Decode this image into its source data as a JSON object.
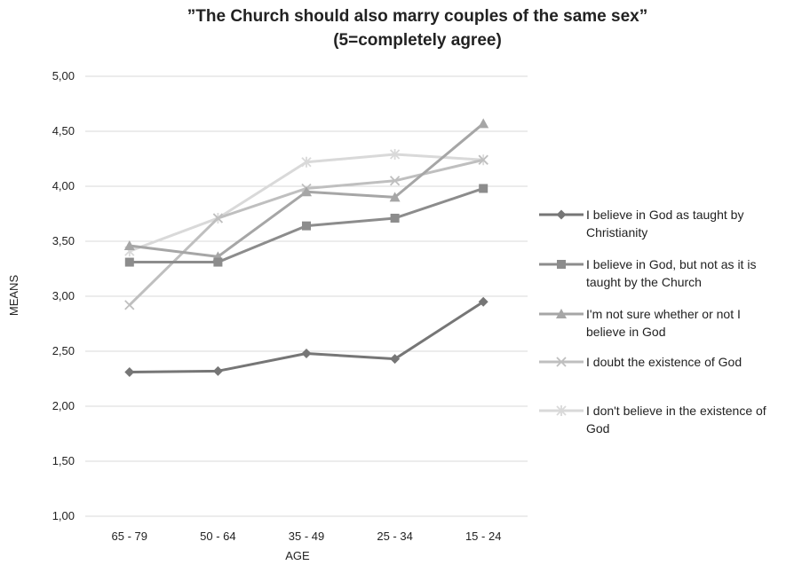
{
  "chart_data": {
    "type": "line",
    "title_line1": "”The Church should also marry couples of the same sex”",
    "title_line2": "(5=completely agree)",
    "xlabel": "AGE",
    "ylabel": "MEANS",
    "categories": [
      "65 - 79",
      "50 - 64",
      "35 - 49",
      "25 - 34",
      "15 - 24"
    ],
    "ylim": [
      1,
      5
    ],
    "yticks": [
      "1,00",
      "1,50",
      "2,00",
      "2,50",
      "3,00",
      "3,50",
      "4,00",
      "4,50",
      "5,00"
    ],
    "grid": true,
    "legend_position": "right",
    "series": [
      {
        "name": "I believe in God as taught by Christianity",
        "legend_lines": [
          "I believe in God as taught by",
          "Christianity"
        ],
        "marker": "diamond",
        "color": "#767676",
        "values": [
          2.31,
          2.32,
          2.48,
          2.43,
          2.95
        ]
      },
      {
        "name": "I believe in God, but not as it is taught by the Church",
        "legend_lines": [
          "I believe in God, but not as it is",
          "taught by the Church"
        ],
        "marker": "square",
        "color": "#8c8c8c",
        "values": [
          3.31,
          3.31,
          3.64,
          3.71,
          3.98
        ]
      },
      {
        "name": "I'm not sure whether or not I believe in God",
        "legend_lines": [
          "I'm not sure whether or not I",
          "believe in God"
        ],
        "marker": "triangle",
        "color": "#a6a6a6",
        "values": [
          3.46,
          3.36,
          3.95,
          3.9,
          4.57
        ]
      },
      {
        "name": "I doubt the existence of God",
        "legend_lines": [
          "I doubt the existence of God"
        ],
        "marker": "x",
        "color": "#bfbfbf",
        "values": [
          2.92,
          3.71,
          3.98,
          4.05,
          4.24
        ]
      },
      {
        "name": "I don't believe in the existence of God",
        "legend_lines": [
          "I don't believe in the existence of",
          "God"
        ],
        "marker": "asterisk",
        "color": "#d9d9d9",
        "values": [
          3.41,
          3.71,
          4.22,
          4.29,
          4.24
        ]
      }
    ]
  }
}
